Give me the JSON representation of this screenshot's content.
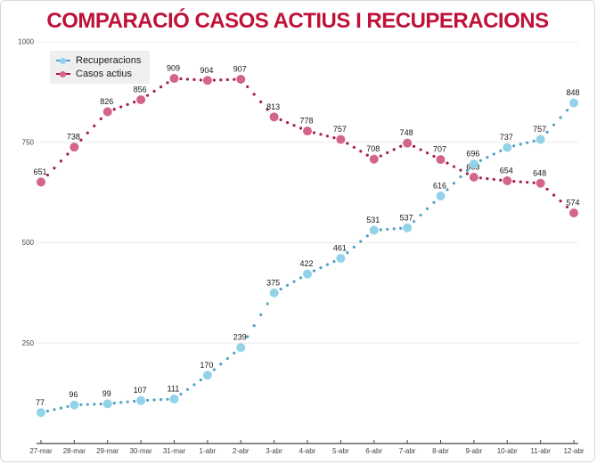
{
  "chart_data": {
    "type": "line",
    "title": "COMPARACIÓ CASOS ACTIUS I RECUPERACIONS",
    "categories": [
      "27-mar",
      "28-mar",
      "29-mar",
      "30-mar",
      "31-mar",
      "1-abr",
      "2-abr",
      "3-abr",
      "4-abr",
      "5-abr",
      "6-abr",
      "7-abr",
      "8-abr",
      "9-abr",
      "10-abr",
      "11-abr",
      "12-abr"
    ],
    "series": [
      {
        "name": "Recuperacions",
        "values": [
          77,
          96,
          99,
          107,
          111,
          170,
          239,
          375,
          422,
          461,
          531,
          537,
          616,
          696,
          737,
          757,
          848
        ],
        "marker_color": "#92d3ea",
        "dot_color": "#4fa3c4"
      },
      {
        "name": "Casos actius",
        "values": [
          651,
          738,
          826,
          856,
          909,
          904,
          907,
          813,
          778,
          757,
          708,
          748,
          707,
          663,
          654,
          648,
          574
        ],
        "marker_color": "#d3648e",
        "dot_color": "#a81c45"
      }
    ],
    "ylim": [
      0,
      1000
    ],
    "yticks": [
      250,
      500,
      750,
      1000
    ],
    "grid": true,
    "line_style": "dotted",
    "legend_position": "top-left"
  },
  "colors": {
    "title": "#c01238",
    "grid": "#ececec",
    "axis": "#444444",
    "value_label": "#161616",
    "legend_bg": "#efefef"
  }
}
